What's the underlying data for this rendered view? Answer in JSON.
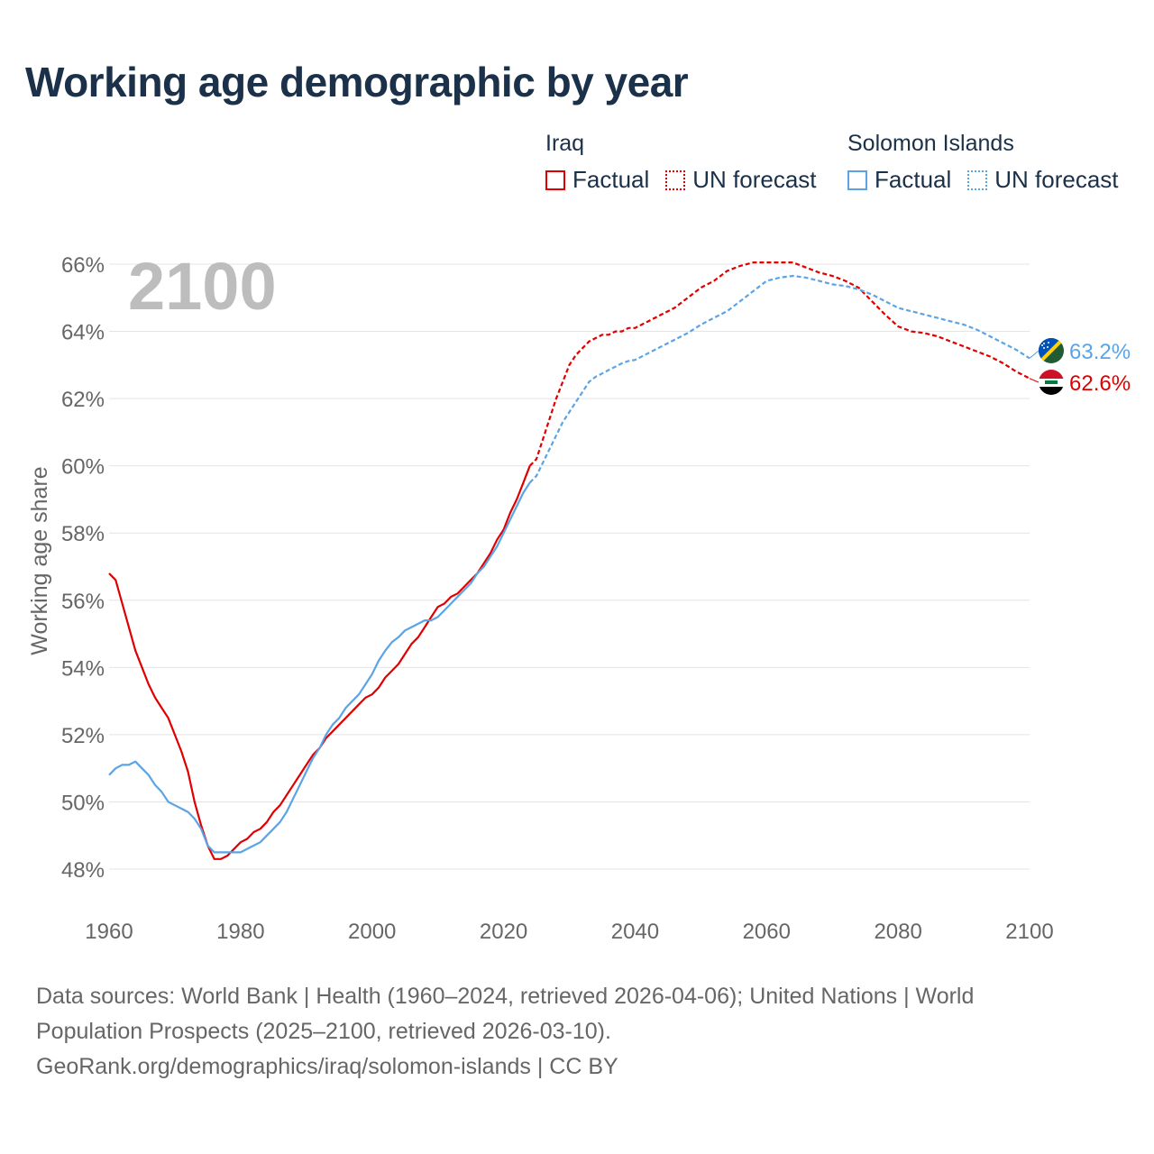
{
  "title": "Working age demographic by year",
  "year_label": "2100",
  "legend": {
    "groups": [
      {
        "country": "Iraq",
        "color": "#e00000",
        "factual_label": "Factual",
        "forecast_label": "UN forecast"
      },
      {
        "country": "Solomon Islands",
        "color": "#5aa4e6",
        "factual_label": "Factual",
        "forecast_label": "UN forecast"
      }
    ]
  },
  "sources": {
    "line1": "Data sources: World Bank | Health (1960–2024, retrieved 2026-04-06); United Nations | World Population Prospects (2025–2100, retrieved 2026-03-10).",
    "line2": "GeoRank.org/demographics/iraq/solomon-islands | CC BY"
  },
  "chart_data": {
    "type": "line",
    "title": "Working age demographic by year",
    "xlabel": "",
    "ylabel": "Working age share",
    "xlim": [
      1960,
      2100
    ],
    "ylim": [
      47,
      67
    ],
    "x_ticks": [
      1960,
      1980,
      2000,
      2020,
      2040,
      2060,
      2080,
      2100
    ],
    "x_tick_labels": [
      "1960",
      "1980",
      "2000",
      "2020",
      "2040",
      "2060",
      "2080",
      "2100"
    ],
    "y_ticks": [
      48,
      50,
      52,
      54,
      56,
      58,
      60,
      62,
      64,
      66
    ],
    "y_tick_labels": [
      "48%",
      "50%",
      "52%",
      "54%",
      "56%",
      "58%",
      "60%",
      "62%",
      "64%",
      "66%"
    ],
    "grid": true,
    "factual_end_year": 2024,
    "series": [
      {
        "name": "Iraq",
        "color": "#e00000",
        "end_label": "62.6%",
        "points": [
          [
            1960,
            56.8
          ],
          [
            1961,
            56.6
          ],
          [
            1962,
            55.9
          ],
          [
            1963,
            55.2
          ],
          [
            1964,
            54.5
          ],
          [
            1965,
            54.0
          ],
          [
            1966,
            53.5
          ],
          [
            1967,
            53.1
          ],
          [
            1968,
            52.8
          ],
          [
            1969,
            52.5
          ],
          [
            1970,
            52.0
          ],
          [
            1971,
            51.5
          ],
          [
            1972,
            50.9
          ],
          [
            1973,
            50.0
          ],
          [
            1974,
            49.3
          ],
          [
            1975,
            48.7
          ],
          [
            1976,
            48.3
          ],
          [
            1977,
            48.3
          ],
          [
            1978,
            48.4
          ],
          [
            1979,
            48.6
          ],
          [
            1980,
            48.8
          ],
          [
            1981,
            48.9
          ],
          [
            1982,
            49.1
          ],
          [
            1983,
            49.2
          ],
          [
            1984,
            49.4
          ],
          [
            1985,
            49.7
          ],
          [
            1986,
            49.9
          ],
          [
            1987,
            50.2
          ],
          [
            1988,
            50.5
          ],
          [
            1989,
            50.8
          ],
          [
            1990,
            51.1
          ],
          [
            1991,
            51.4
          ],
          [
            1992,
            51.6
          ],
          [
            1993,
            51.9
          ],
          [
            1994,
            52.1
          ],
          [
            1995,
            52.3
          ],
          [
            1996,
            52.5
          ],
          [
            1997,
            52.7
          ],
          [
            1998,
            52.9
          ],
          [
            1999,
            53.1
          ],
          [
            2000,
            53.2
          ],
          [
            2001,
            53.4
          ],
          [
            2002,
            53.7
          ],
          [
            2003,
            53.9
          ],
          [
            2004,
            54.1
          ],
          [
            2005,
            54.4
          ],
          [
            2006,
            54.7
          ],
          [
            2007,
            54.9
          ],
          [
            2008,
            55.2
          ],
          [
            2009,
            55.5
          ],
          [
            2010,
            55.8
          ],
          [
            2011,
            55.9
          ],
          [
            2012,
            56.1
          ],
          [
            2013,
            56.2
          ],
          [
            2014,
            56.4
          ],
          [
            2015,
            56.6
          ],
          [
            2016,
            56.8
          ],
          [
            2017,
            57.1
          ],
          [
            2018,
            57.4
          ],
          [
            2019,
            57.8
          ],
          [
            2020,
            58.1
          ],
          [
            2021,
            58.6
          ],
          [
            2022,
            59.0
          ],
          [
            2023,
            59.5
          ],
          [
            2024,
            60.0
          ],
          [
            2025,
            60.2
          ],
          [
            2026,
            60.8
          ],
          [
            2027,
            61.4
          ],
          [
            2028,
            62.0
          ],
          [
            2029,
            62.5
          ],
          [
            2030,
            63.0
          ],
          [
            2031,
            63.3
          ],
          [
            2032,
            63.5
          ],
          [
            2033,
            63.7
          ],
          [
            2034,
            63.8
          ],
          [
            2035,
            63.9
          ],
          [
            2036,
            63.9
          ],
          [
            2037,
            64.0
          ],
          [
            2038,
            64.0
          ],
          [
            2039,
            64.1
          ],
          [
            2040,
            64.1
          ],
          [
            2042,
            64.3
          ],
          [
            2044,
            64.5
          ],
          [
            2046,
            64.7
          ],
          [
            2048,
            65.0
          ],
          [
            2050,
            65.3
          ],
          [
            2052,
            65.5
          ],
          [
            2054,
            65.8
          ],
          [
            2056,
            65.95
          ],
          [
            2058,
            66.05
          ],
          [
            2060,
            66.05
          ],
          [
            2062,
            66.05
          ],
          [
            2064,
            66.05
          ],
          [
            2066,
            65.9
          ],
          [
            2068,
            65.75
          ],
          [
            2070,
            65.65
          ],
          [
            2072,
            65.5
          ],
          [
            2074,
            65.3
          ],
          [
            2076,
            64.9
          ],
          [
            2078,
            64.5
          ],
          [
            2080,
            64.15
          ],
          [
            2082,
            64.0
          ],
          [
            2084,
            63.95
          ],
          [
            2086,
            63.85
          ],
          [
            2088,
            63.7
          ],
          [
            2090,
            63.55
          ],
          [
            2092,
            63.4
          ],
          [
            2094,
            63.25
          ],
          [
            2096,
            63.05
          ],
          [
            2098,
            62.8
          ],
          [
            2100,
            62.6
          ]
        ]
      },
      {
        "name": "Solomon Islands",
        "color": "#5aa4e6",
        "end_label": "63.2%",
        "points": [
          [
            1960,
            50.8
          ],
          [
            1961,
            51.0
          ],
          [
            1962,
            51.1
          ],
          [
            1963,
            51.1
          ],
          [
            1964,
            51.2
          ],
          [
            1965,
            51.0
          ],
          [
            1966,
            50.8
          ],
          [
            1967,
            50.5
          ],
          [
            1968,
            50.3
          ],
          [
            1969,
            50.0
          ],
          [
            1970,
            49.9
          ],
          [
            1971,
            49.8
          ],
          [
            1972,
            49.7
          ],
          [
            1973,
            49.5
          ],
          [
            1974,
            49.2
          ],
          [
            1975,
            48.7
          ],
          [
            1976,
            48.5
          ],
          [
            1977,
            48.5
          ],
          [
            1978,
            48.5
          ],
          [
            1979,
            48.5
          ],
          [
            1980,
            48.5
          ],
          [
            1981,
            48.6
          ],
          [
            1982,
            48.7
          ],
          [
            1983,
            48.8
          ],
          [
            1984,
            49.0
          ],
          [
            1985,
            49.2
          ],
          [
            1986,
            49.4
          ],
          [
            1987,
            49.7
          ],
          [
            1988,
            50.1
          ],
          [
            1989,
            50.5
          ],
          [
            1990,
            50.9
          ],
          [
            1991,
            51.3
          ],
          [
            1992,
            51.6
          ],
          [
            1993,
            52.0
          ],
          [
            1994,
            52.3
          ],
          [
            1995,
            52.5
          ],
          [
            1996,
            52.8
          ],
          [
            1997,
            53.0
          ],
          [
            1998,
            53.2
          ],
          [
            1999,
            53.5
          ],
          [
            2000,
            53.8
          ],
          [
            2001,
            54.2
          ],
          [
            2002,
            54.5
          ],
          [
            2003,
            54.75
          ],
          [
            2004,
            54.9
          ],
          [
            2005,
            55.1
          ],
          [
            2006,
            55.2
          ],
          [
            2007,
            55.3
          ],
          [
            2008,
            55.4
          ],
          [
            2009,
            55.4
          ],
          [
            2010,
            55.5
          ],
          [
            2011,
            55.7
          ],
          [
            2012,
            55.9
          ],
          [
            2013,
            56.1
          ],
          [
            2014,
            56.3
          ],
          [
            2015,
            56.5
          ],
          [
            2016,
            56.8
          ],
          [
            2017,
            57.0
          ],
          [
            2018,
            57.3
          ],
          [
            2019,
            57.6
          ],
          [
            2020,
            58.0
          ],
          [
            2021,
            58.4
          ],
          [
            2022,
            58.8
          ],
          [
            2023,
            59.2
          ],
          [
            2024,
            59.5
          ],
          [
            2025,
            59.7
          ],
          [
            2026,
            60.1
          ],
          [
            2027,
            60.5
          ],
          [
            2028,
            60.9
          ],
          [
            2029,
            61.3
          ],
          [
            2030,
            61.6
          ],
          [
            2031,
            61.9
          ],
          [
            2032,
            62.2
          ],
          [
            2033,
            62.5
          ],
          [
            2034,
            62.65
          ],
          [
            2035,
            62.75
          ],
          [
            2036,
            62.85
          ],
          [
            2037,
            62.95
          ],
          [
            2038,
            63.05
          ],
          [
            2039,
            63.12
          ],
          [
            2040,
            63.15
          ],
          [
            2042,
            63.35
          ],
          [
            2044,
            63.55
          ],
          [
            2046,
            63.75
          ],
          [
            2048,
            63.95
          ],
          [
            2050,
            64.2
          ],
          [
            2052,
            64.4
          ],
          [
            2054,
            64.6
          ],
          [
            2056,
            64.9
          ],
          [
            2058,
            65.2
          ],
          [
            2060,
            65.5
          ],
          [
            2062,
            65.6
          ],
          [
            2064,
            65.65
          ],
          [
            2066,
            65.6
          ],
          [
            2068,
            65.5
          ],
          [
            2070,
            65.4
          ],
          [
            2072,
            65.35
          ],
          [
            2074,
            65.25
          ],
          [
            2076,
            65.1
          ],
          [
            2078,
            64.9
          ],
          [
            2080,
            64.7
          ],
          [
            2082,
            64.6
          ],
          [
            2084,
            64.5
          ],
          [
            2086,
            64.4
          ],
          [
            2088,
            64.3
          ],
          [
            2090,
            64.2
          ],
          [
            2092,
            64.05
          ],
          [
            2094,
            63.85
          ],
          [
            2096,
            63.65
          ],
          [
            2098,
            63.45
          ],
          [
            2100,
            63.2
          ]
        ]
      }
    ]
  }
}
